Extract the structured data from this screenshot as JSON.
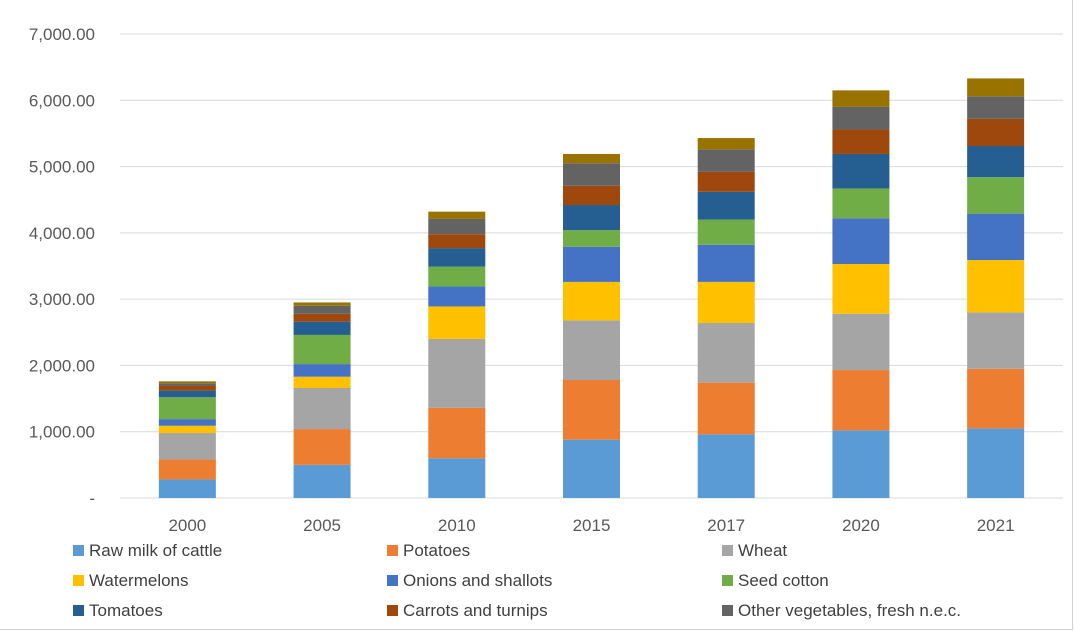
{
  "chart_data": {
    "type": "bar",
    "stacked": true,
    "categories": [
      "2000",
      "2005",
      "2010",
      "2015",
      "2017",
      "2020",
      "2021"
    ],
    "ylim": [
      0,
      7000
    ],
    "yticks": [
      0,
      1000,
      2000,
      3000,
      4000,
      5000,
      6000,
      7000
    ],
    "ytick_labels": [
      "-",
      "1,000.00",
      "2,000.00",
      "3,000.00",
      "4,000.00",
      "5,000.00",
      "6,000.00",
      "7,000.00"
    ],
    "grid": true,
    "legend_position": "bottom",
    "series": [
      {
        "name": "Raw milk of cattle",
        "color": "#5b9bd5",
        "values": [
          280,
          500,
          600,
          880,
          960,
          1020,
          1050
        ]
      },
      {
        "name": "Potatoes",
        "color": "#ed7d31",
        "values": [
          300,
          540,
          760,
          900,
          780,
          910,
          900
        ]
      },
      {
        "name": "Wheat",
        "color": "#a5a5a5",
        "values": [
          400,
          620,
          1040,
          900,
          900,
          850,
          850
        ]
      },
      {
        "name": "Watermelons",
        "color": "#ffc000",
        "values": [
          110,
          170,
          490,
          580,
          620,
          750,
          790
        ]
      },
      {
        "name": "Onions and shallots",
        "color": "#4472c4",
        "values": [
          100,
          190,
          300,
          530,
          560,
          690,
          700
        ]
      },
      {
        "name": "Seed cotton",
        "color": "#70ad47",
        "values": [
          330,
          440,
          300,
          250,
          380,
          450,
          550
        ]
      },
      {
        "name": "Tomatoes",
        "color": "#255e91",
        "values": [
          100,
          200,
          280,
          380,
          420,
          520,
          470
        ]
      },
      {
        "name": "Carrots and turnips",
        "color": "#9e480e",
        "values": [
          70,
          120,
          210,
          290,
          300,
          370,
          410
        ]
      },
      {
        "name": "Other vegetables, fresh n.e.c.",
        "color": "#636363",
        "values": [
          40,
          120,
          230,
          340,
          340,
          340,
          340
        ]
      },
      {
        "name": "",
        "color": "#997300",
        "values": [
          30,
          50,
          110,
          140,
          170,
          250,
          270
        ]
      }
    ]
  }
}
